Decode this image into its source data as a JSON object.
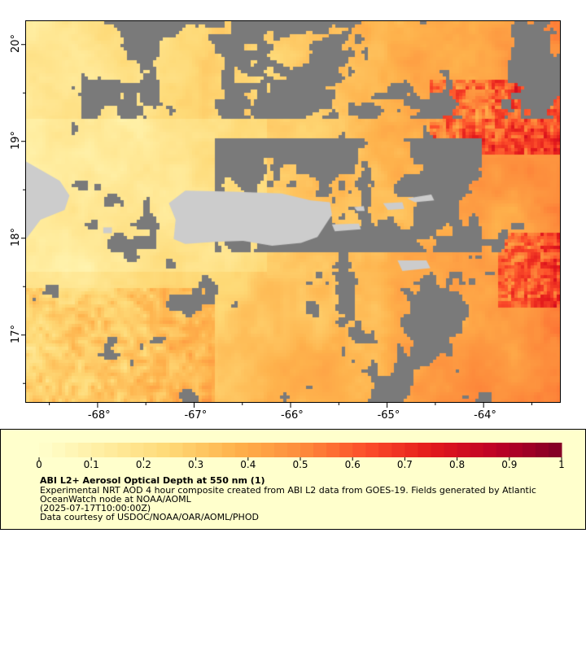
{
  "map": {
    "region": "Puerto Rico and surrounding Caribbean",
    "lon_range": [
      -68.75,
      -63.2
    ],
    "lat_range": [
      16.3,
      20.25
    ],
    "lon_ticks": [
      {
        "value": -68,
        "label": "-68°"
      },
      {
        "value": -67,
        "label": "-67°"
      },
      {
        "value": -66,
        "label": "-66°"
      },
      {
        "value": -65,
        "label": "-65°"
      },
      {
        "value": -64,
        "label": "-64°"
      }
    ],
    "lat_ticks": [
      {
        "value": 17,
        "label": "17°"
      },
      {
        "value": 18,
        "label": "18°"
      },
      {
        "value": 19,
        "label": "19°"
      },
      {
        "value": 20,
        "label": "20°"
      }
    ],
    "colors": {
      "no_data": "#7a7a7a",
      "land": "#cccccc",
      "legend_background": "#ffffcc"
    }
  },
  "colorbar": {
    "min": 0,
    "max": 1,
    "tick_labels": [
      "0",
      "0.1",
      "0.2",
      "0.3",
      "0.4",
      "0.5",
      "0.6",
      "0.7",
      "0.8",
      "0.9",
      "1"
    ],
    "colors": [
      "#ffffcc",
      "#ffeda0",
      "#fed976",
      "#feb24c",
      "#fd8d3c",
      "#fc4e2a",
      "#e31a1c",
      "#bd0026",
      "#800026"
    ]
  },
  "legend": {
    "title": "ABI L2+ Aerosol Optical Depth at 550 nm (1)",
    "line1": "Experimental NRT AOD 4 hour composite created from ABI L2 data from GOES-19. Fields generated by Atlantic",
    "line2": "OceanWatch node at NOAA/AOML",
    "line3": "(2025-07-17T10:00:00Z)",
    "line4": "Data courtesy of USDOC/NOAA/OAR/AOML/PHOD"
  }
}
